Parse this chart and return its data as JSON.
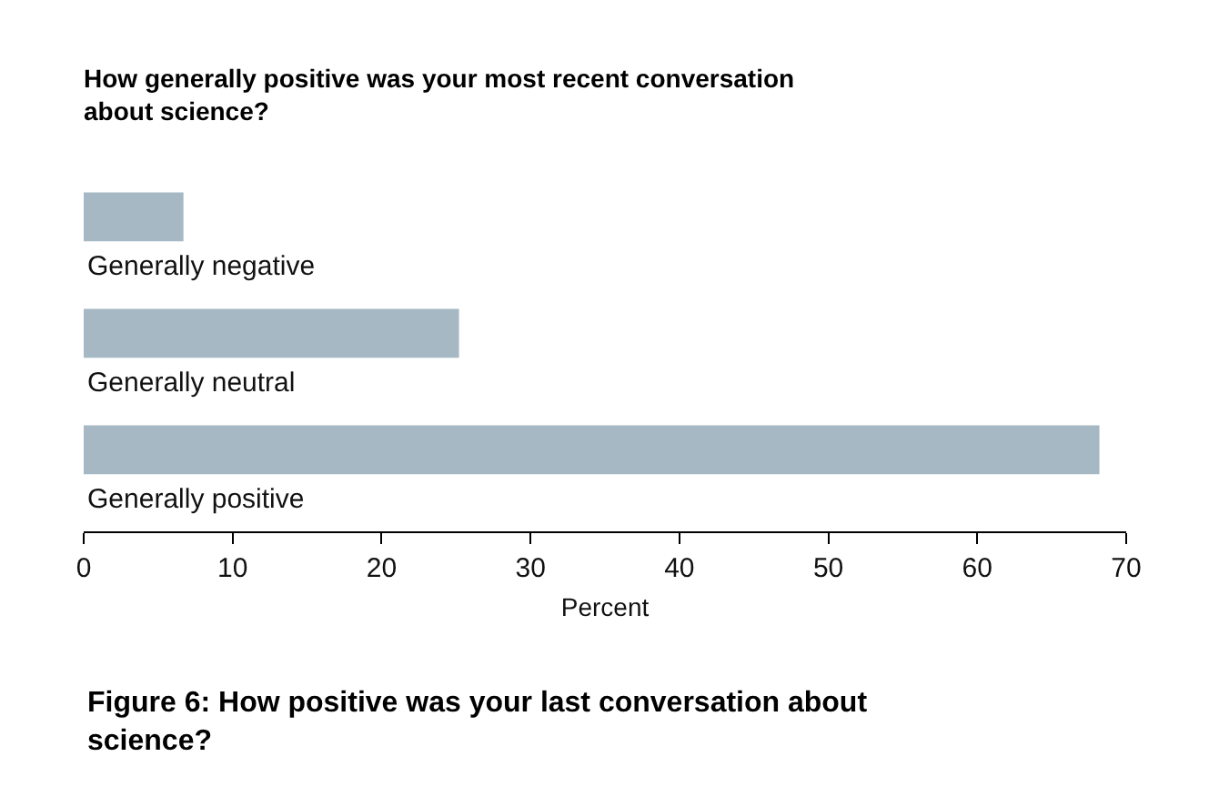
{
  "chart_data": {
    "type": "bar",
    "orientation": "horizontal",
    "title": "How generally positive was your most recent conversation\nabout science?",
    "categories": [
      "Generally negative",
      "Generally neutral",
      "Generally positive"
    ],
    "values": [
      6.7,
      25.2,
      68.2
    ],
    "color": "#a5b8c4",
    "xlim": [
      0,
      70
    ],
    "xticks": [
      0,
      10,
      20,
      30,
      40,
      50,
      60,
      70
    ],
    "xlabel": "Percent",
    "annotations": [
      "Figure 6: How positive was your last conversation about\nscience?"
    ]
  }
}
